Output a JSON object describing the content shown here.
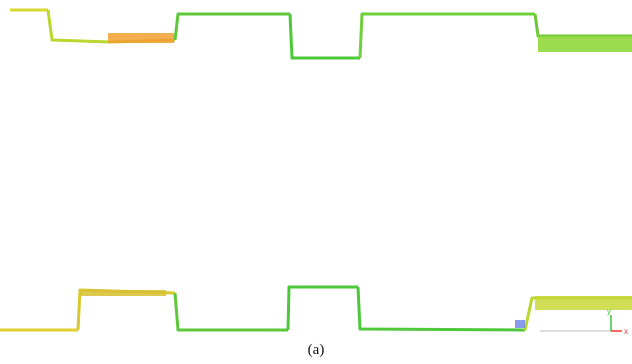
{
  "figure": {
    "caption": "(a)",
    "axis_indicator": {
      "x_label": "x",
      "y_label": "y"
    },
    "colors": {
      "green": "#4ec83a",
      "lime": "#8fd83a",
      "yellow": "#d8d830",
      "orange": "#f0a030",
      "blue": "#3a5ae0",
      "axis_red": "#ff3030",
      "axis_green": "#40c040"
    }
  }
}
